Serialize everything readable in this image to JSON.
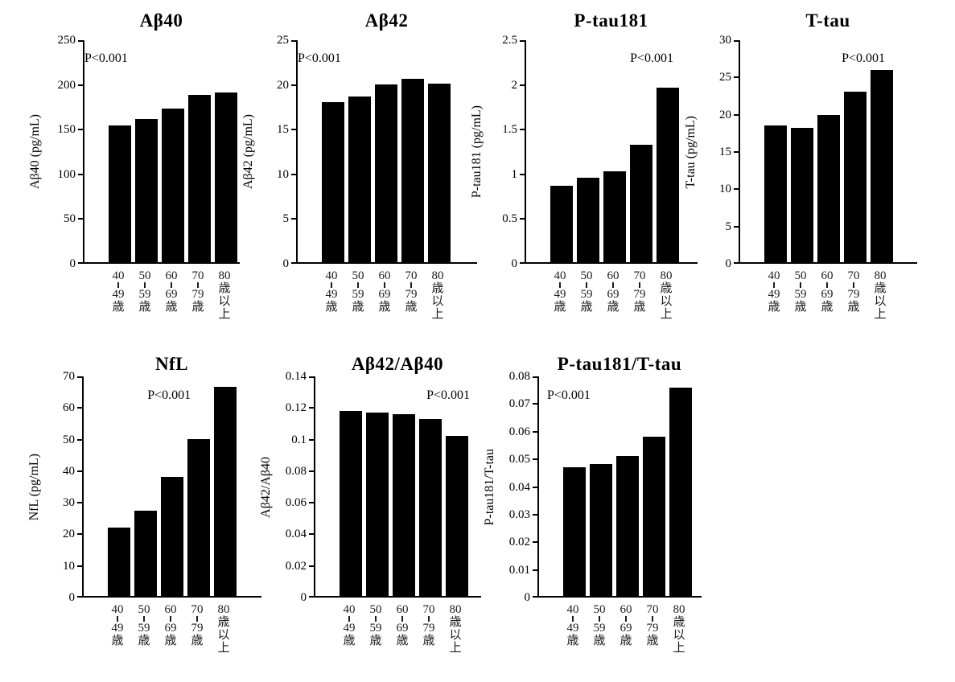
{
  "figure": {
    "background": "#ffffff",
    "colors": {
      "bar": "#000000",
      "axis": "#000000",
      "text": "#000000"
    }
  },
  "chart_data": [
    {
      "type": "bar",
      "title": "Aβ40",
      "ylabel": "Aβ40 (pg/mL)",
      "p_annotation": "P<0.001",
      "p_align": "right",
      "categories": [
        "40-49歳",
        "50-59歳",
        "60-69歳",
        "70-79歳",
        "80歳以上"
      ],
      "values": [
        154,
        161,
        173,
        188,
        191
      ],
      "ylim": [
        0,
        250
      ],
      "yticks": [
        "0",
        "50",
        "100",
        "150",
        "200",
        "250"
      ],
      "grid": false,
      "legend": "none"
    },
    {
      "type": "bar",
      "title": "Aβ42",
      "ylabel": "Aβ42 (pg/mL)",
      "p_annotation": "P<0.001",
      "p_align": "right",
      "categories": [
        "40-49歳",
        "50-59歳",
        "60-69歳",
        "70-79歳",
        "80歳以上"
      ],
      "values": [
        18.0,
        18.7,
        20.0,
        20.7,
        20.1
      ],
      "ylim": [
        0,
        25
      ],
      "yticks": [
        "0",
        "5",
        "10",
        "15",
        "20",
        "25"
      ],
      "grid": false,
      "legend": "none"
    },
    {
      "type": "bar",
      "title": "P-tau181",
      "ylabel": "P-tau181 (pg/mL)",
      "p_annotation": "P<0.001",
      "p_align": "right",
      "categories": [
        "40-49歳",
        "50-59歳",
        "60-69歳",
        "70-79歳",
        "80歳以上"
      ],
      "values": [
        0.86,
        0.95,
        1.02,
        1.32,
        1.97
      ],
      "ylim": [
        0,
        2.5
      ],
      "yticks": [
        "0",
        "0.5",
        "1",
        "1.5",
        "2",
        "2.5"
      ],
      "grid": false,
      "legend": "none"
    },
    {
      "type": "bar",
      "title": "T-tau",
      "ylabel": "T-tau (pg/mL)",
      "p_annotation": "P<0.001",
      "p_align": "right",
      "categories": [
        "40-49歳",
        "50-59歳",
        "60-69歳",
        "70-79歳",
        "80歳以上"
      ],
      "values": [
        18.5,
        18.2,
        19.9,
        23.0,
        26.0
      ],
      "ylim": [
        0,
        30
      ],
      "yticks": [
        "0",
        "5",
        "10",
        "15",
        "20",
        "25",
        "30"
      ],
      "grid": false,
      "legend": "none"
    },
    {
      "type": "bar",
      "title": "NfL",
      "ylabel": "NfL (pg/mL)",
      "p_annotation": "P<0.001",
      "p_align": "center",
      "categories": [
        "40-49歳",
        "50-59歳",
        "60-69歳",
        "70-79歳",
        "80歳以上"
      ],
      "values": [
        21.7,
        27.2,
        38.0,
        50.0,
        66.6
      ],
      "ylim": [
        0,
        70
      ],
      "yticks": [
        "0",
        "10",
        "20",
        "30",
        "40",
        "50",
        "60",
        "70"
      ],
      "grid": false,
      "legend": "none"
    },
    {
      "type": "bar",
      "title": "Aβ42/Aβ40",
      "ylabel": "Aβ42/Aβ40",
      "p_annotation": "P<0.001",
      "p_align": "right",
      "categories": [
        "40-49歳",
        "50-59歳",
        "60-69歳",
        "70-79歳",
        "80歳以上"
      ],
      "values": [
        0.118,
        0.117,
        0.116,
        0.113,
        0.102
      ],
      "ylim": [
        0,
        0.14
      ],
      "yticks": [
        "0",
        "0.02",
        "0.04",
        "0.06",
        "0.08",
        "0.1",
        "0.12",
        "0.14"
      ],
      "grid": false,
      "legend": "none"
    },
    {
      "type": "bar",
      "title": "P-tau181/T-tau",
      "ylabel": "P-tau181/T-tau",
      "p_annotation": "P<0.001",
      "p_align": "left",
      "categories": [
        "40-49歳",
        "50-59歳",
        "60-69歳",
        "70-79歳",
        "80歳以上"
      ],
      "values": [
        0.047,
        0.048,
        0.051,
        0.058,
        0.076
      ],
      "ylim": [
        0,
        0.08
      ],
      "yticks": [
        "0",
        "0.01",
        "0.02",
        "0.03",
        "0.04",
        "0.05",
        "0.06",
        "0.07",
        "0.08"
      ],
      "grid": false,
      "legend": "none"
    }
  ]
}
